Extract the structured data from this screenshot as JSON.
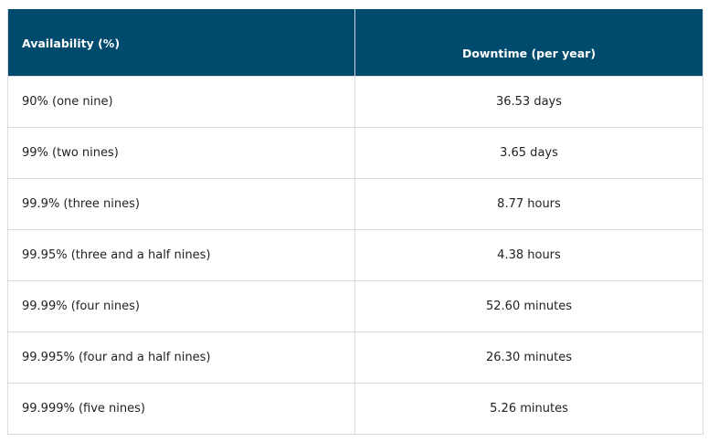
{
  "table": {
    "headers": {
      "availability": "Availability (%)",
      "downtime": "Downtime (per year)"
    },
    "rows": [
      {
        "availability": "90% (one nine)",
        "downtime": "36.53 days"
      },
      {
        "availability": "99% (two nines)",
        "downtime": "3.65 days"
      },
      {
        "availability": "99.9% (three nines)",
        "downtime": "8.77 hours"
      },
      {
        "availability": "99.95% (three and a half nines)",
        "downtime": "4.38 hours"
      },
      {
        "availability": "99.99% (four nines)",
        "downtime": "52.60 minutes"
      },
      {
        "availability": "99.995% (four and a half nines)",
        "downtime": "26.30 minutes"
      },
      {
        "availability": "99.999% (five nines)",
        "downtime": "5.26 minutes"
      }
    ]
  },
  "colors": {
    "header_background": "#004a6e",
    "header_text": "#ffffff",
    "border": "#d7dcdf"
  }
}
